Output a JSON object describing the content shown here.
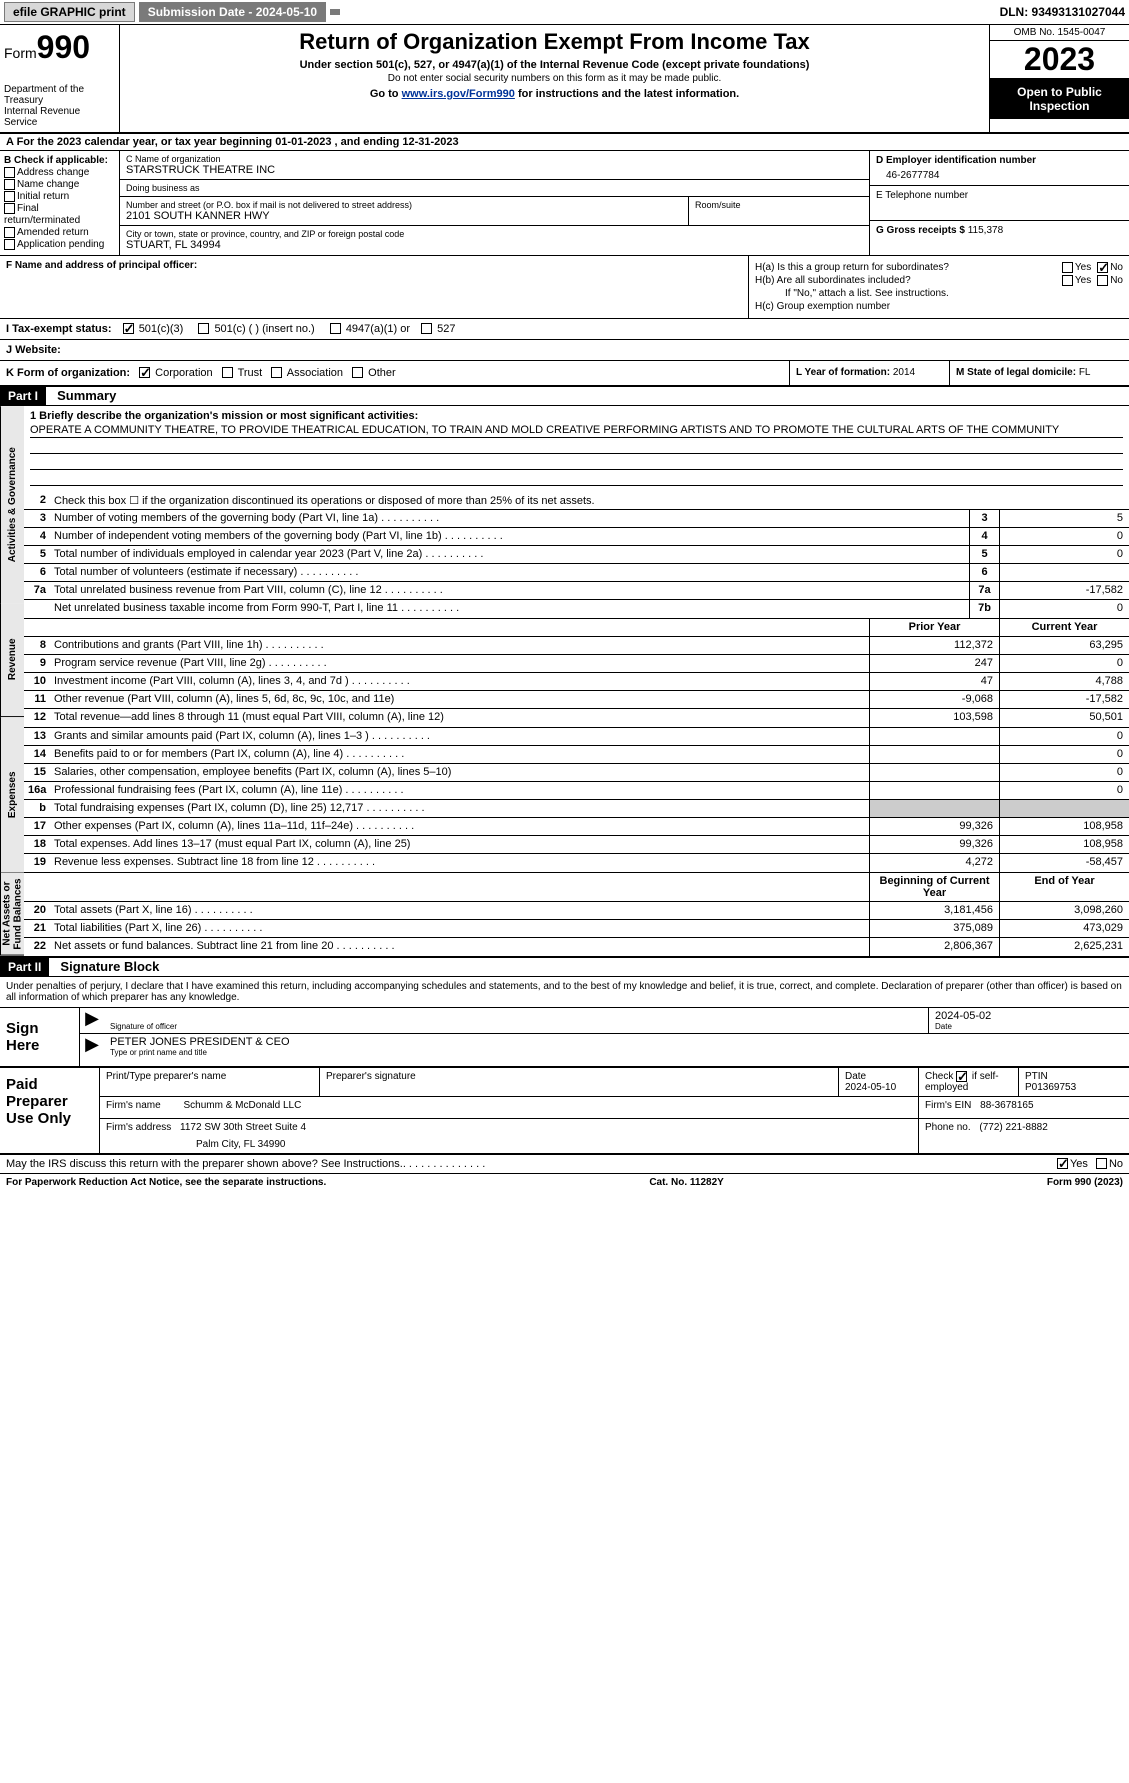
{
  "topbar": {
    "efile": "efile GRAPHIC print",
    "submission": "Submission Date - 2024-05-10",
    "dln": "DLN: 93493131027044"
  },
  "header": {
    "form_word": "Form",
    "form_num": "990",
    "dept": "Department of the Treasury",
    "irs": "Internal Revenue Service",
    "title": "Return of Organization Exempt From Income Tax",
    "sub1": "Under section 501(c), 527, or 4947(a)(1) of the Internal Revenue Code (except private foundations)",
    "sub2": "Do not enter social security numbers on this form as it may be made public.",
    "goto_pre": "Go to ",
    "goto_link": "www.irs.gov/Form990",
    "goto_post": " for instructions and the latest information.",
    "omb": "OMB No. 1545-0047",
    "year": "2023",
    "open": "Open to Public Inspection"
  },
  "rowA": "A For the 2023 calendar year, or tax year beginning 01-01-2023   , and ending 12-31-2023",
  "B": {
    "title": "B Check if applicable:",
    "opts": [
      "Address change",
      "Name change",
      "Initial return",
      "Final return/terminated",
      "Amended return",
      "Application pending"
    ]
  },
  "C": {
    "name_lbl": "C Name of organization",
    "name": "STARSTRUCK THEATRE INC",
    "dba_lbl": "Doing business as",
    "dba": "",
    "street_lbl": "Number and street (or P.O. box if mail is not delivered to street address)",
    "street": "2101 SOUTH KANNER HWY",
    "room_lbl": "Room/suite",
    "city_lbl": "City or town, state or province, country, and ZIP or foreign postal code",
    "city": "STUART, FL  34994"
  },
  "D": {
    "lbl": "D Employer identification number",
    "val": "46-2677784"
  },
  "E": {
    "lbl": "E Telephone number",
    "val": ""
  },
  "G": {
    "lbl": "G Gross receipts $",
    "val": "115,378"
  },
  "F": {
    "lbl": "F  Name and address of principal officer:",
    "val": ""
  },
  "H": {
    "a": "H(a)  Is this a group return for subordinates?",
    "a_yes": false,
    "a_no": true,
    "b": "H(b)  Are all subordinates included?",
    "b_note": "If \"No,\" attach a list. See instructions.",
    "c": "H(c)  Group exemption number"
  },
  "I": {
    "lbl": "I   Tax-exempt status:",
    "o1": "501(c)(3)",
    "o1_checked": true,
    "o2": "501(c) (  ) (insert no.)",
    "o3": "4947(a)(1) or",
    "o4": "527"
  },
  "J": {
    "lbl": "J   Website:",
    "val": ""
  },
  "K": {
    "lbl": "K Form of organization:",
    "corp": "Corporation",
    "corp_checked": true,
    "trust": "Trust",
    "assoc": "Association",
    "other": "Other"
  },
  "L": {
    "lbl": "L Year of formation:",
    "val": "2014"
  },
  "M": {
    "lbl": "M State of legal domicile:",
    "val": "FL"
  },
  "part1": {
    "hdr": "Part I",
    "title": "Summary"
  },
  "mission": {
    "lbl": "1   Briefly describe the organization's mission or most significant activities:",
    "text": "OPERATE A COMMUNITY THEATRE, TO PROVIDE THEATRICAL EDUCATION, TO TRAIN AND MOLD CREATIVE PERFORMING ARTISTS AND TO PROMOTE THE CULTURAL ARTS OF THE COMMUNITY"
  },
  "line2": "Check this box  ☐  if the organization discontinued its operations or disposed of more than 25% of its net assets.",
  "sections": {
    "gov": "Activities & Governance",
    "rev": "Revenue",
    "exp": "Expenses",
    "net": "Net Assets or Fund Balances"
  },
  "gov_lines": [
    {
      "n": "3",
      "d": "Number of voting members of the governing body (Part VI, line 1a)",
      "box": "3",
      "v": "5"
    },
    {
      "n": "4",
      "d": "Number of independent voting members of the governing body (Part VI, line 1b)",
      "box": "4",
      "v": "0"
    },
    {
      "n": "5",
      "d": "Total number of individuals employed in calendar year 2023 (Part V, line 2a)",
      "box": "5",
      "v": "0"
    },
    {
      "n": "6",
      "d": "Total number of volunteers (estimate if necessary)",
      "box": "6",
      "v": ""
    },
    {
      "n": "7a",
      "d": "Total unrelated business revenue from Part VIII, column (C), line 12",
      "box": "7a",
      "v": "-17,582"
    },
    {
      "n": "",
      "d": "Net unrelated business taxable income from Form 990-T, Part I, line 11",
      "box": "7b",
      "v": "0"
    }
  ],
  "col_hdr": {
    "prior": "Prior Year",
    "current": "Current Year",
    "begin": "Beginning of Current Year",
    "end": "End of Year"
  },
  "rev_lines": [
    {
      "n": "8",
      "d": "Contributions and grants (Part VIII, line 1h)",
      "p": "112,372",
      "c": "63,295"
    },
    {
      "n": "9",
      "d": "Program service revenue (Part VIII, line 2g)",
      "p": "247",
      "c": "0"
    },
    {
      "n": "10",
      "d": "Investment income (Part VIII, column (A), lines 3, 4, and 7d )",
      "p": "47",
      "c": "4,788"
    },
    {
      "n": "11",
      "d": "Other revenue (Part VIII, column (A), lines 5, 6d, 8c, 9c, 10c, and 11e)",
      "p": "-9,068",
      "c": "-17,582"
    },
    {
      "n": "12",
      "d": "Total revenue—add lines 8 through 11 (must equal Part VIII, column (A), line 12)",
      "p": "103,598",
      "c": "50,501"
    }
  ],
  "exp_lines": [
    {
      "n": "13",
      "d": "Grants and similar amounts paid (Part IX, column (A), lines 1–3 )",
      "p": "",
      "c": "0"
    },
    {
      "n": "14",
      "d": "Benefits paid to or for members (Part IX, column (A), line 4)",
      "p": "",
      "c": "0"
    },
    {
      "n": "15",
      "d": "Salaries, other compensation, employee benefits (Part IX, column (A), lines 5–10)",
      "p": "",
      "c": "0"
    },
    {
      "n": "16a",
      "d": "Professional fundraising fees (Part IX, column (A), line 11e)",
      "p": "",
      "c": "0"
    },
    {
      "n": "b",
      "d": "Total fundraising expenses (Part IX, column (D), line 25) 12,717",
      "p": "SHADE",
      "c": "SHADE"
    },
    {
      "n": "17",
      "d": "Other expenses (Part IX, column (A), lines 11a–11d, 11f–24e)",
      "p": "99,326",
      "c": "108,958"
    },
    {
      "n": "18",
      "d": "Total expenses. Add lines 13–17 (must equal Part IX, column (A), line 25)",
      "p": "99,326",
      "c": "108,958"
    },
    {
      "n": "19",
      "d": "Revenue less expenses. Subtract line 18 from line 12",
      "p": "4,272",
      "c": "-58,457"
    }
  ],
  "net_lines": [
    {
      "n": "20",
      "d": "Total assets (Part X, line 16)",
      "p": "3,181,456",
      "c": "3,098,260"
    },
    {
      "n": "21",
      "d": "Total liabilities (Part X, line 26)",
      "p": "375,089",
      "c": "473,029"
    },
    {
      "n": "22",
      "d": "Net assets or fund balances. Subtract line 21 from line 20",
      "p": "2,806,367",
      "c": "2,625,231"
    }
  ],
  "part2": {
    "hdr": "Part II",
    "title": "Signature Block"
  },
  "sig_intro": "Under penalties of perjury, I declare that I have examined this return, including accompanying schedules and statements, and to the best of my knowledge and belief, it is true, correct, and complete. Declaration of preparer (other than officer) is based on all information of which preparer has any knowledge.",
  "sign": {
    "here": "Sign Here",
    "sig_lbl": "Signature of officer",
    "officer": "PETER JONES  PRESIDENT & CEO",
    "type_lbl": "Type or print name and title",
    "date_lbl": "Date",
    "date": "2024-05-02"
  },
  "paid": {
    "title": "Paid Preparer Use Only",
    "name_lbl": "Print/Type preparer's name",
    "sig_lbl": "Preparer's signature",
    "date_lbl": "Date",
    "date": "2024-05-10",
    "check_lbl": "Check",
    "self_lbl": "if self-employed",
    "ptin_lbl": "PTIN",
    "ptin": "P01369753",
    "firm_name_lbl": "Firm's name",
    "firm_name": "Schumm & McDonald LLC",
    "firm_ein_lbl": "Firm's EIN",
    "firm_ein": "88-3678165",
    "firm_addr_lbl": "Firm's address",
    "firm_addr1": "1172 SW 30th Street Suite 4",
    "firm_addr2": "Palm City, FL  34990",
    "phone_lbl": "Phone no.",
    "phone": "(772) 221-8882"
  },
  "discuss": {
    "q": "May the IRS discuss this return with the preparer shown above? See Instructions.",
    "yes": true,
    "no": false
  },
  "footer": {
    "pra": "For Paperwork Reduction Act Notice, see the separate instructions.",
    "cat": "Cat. No. 11282Y",
    "form": "Form 990 (2023)"
  }
}
